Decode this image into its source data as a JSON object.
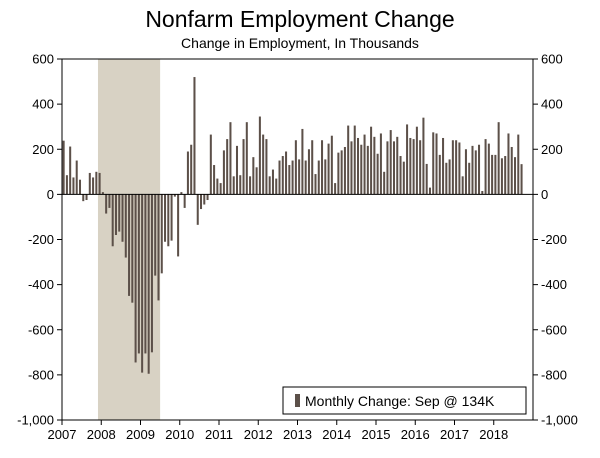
{
  "chart_data": {
    "type": "bar",
    "title": "Nonfarm Employment Change",
    "subtitle": "Change in Employment, In Thousands",
    "xlabel": "",
    "ylabel": "",
    "ylim": [
      -1000,
      600
    ],
    "yticks": [
      600,
      400,
      200,
      0,
      -200,
      -400,
      -600,
      -800,
      -1000
    ],
    "ytick_labels": [
      "600",
      "400",
      "200",
      "0",
      "-200",
      "-400",
      "-600",
      "-800",
      "-1,000"
    ],
    "xticks": [
      "2007",
      "2008",
      "2009",
      "2010",
      "2011",
      "2012",
      "2013",
      "2014",
      "2015",
      "2016",
      "2017",
      "2018"
    ],
    "start": "2007-01",
    "recession": {
      "start": "2007-12",
      "end": "2009-06"
    },
    "series": [
      {
        "name": "Monthly Change: Sep @ 134K",
        "color": "#5c5049",
        "values": [
          238,
          85,
          212,
          75,
          150,
          65,
          -30,
          -25,
          95,
          75,
          100,
          95,
          10,
          -85,
          -60,
          -230,
          -180,
          -165,
          -210,
          -280,
          -450,
          -480,
          -745,
          -705,
          -790,
          -705,
          -795,
          -700,
          -360,
          -470,
          -350,
          -210,
          -230,
          -205,
          -10,
          -275,
          10,
          -60,
          190,
          220,
          520,
          -135,
          -65,
          -45,
          -25,
          265,
          130,
          70,
          50,
          195,
          245,
          320,
          80,
          215,
          85,
          245,
          320,
          80,
          165,
          120,
          345,
          265,
          245,
          80,
          110,
          70,
          150,
          170,
          190,
          130,
          150,
          240,
          155,
          290,
          150,
          200,
          240,
          90,
          150,
          240,
          155,
          225,
          260,
          50,
          185,
          195,
          210,
          305,
          235,
          305,
          250,
          220,
          265,
          215,
          300,
          255,
          180,
          270,
          100,
          235,
          285,
          235,
          255,
          170,
          145,
          310,
          250,
          245,
          300,
          240,
          340,
          135,
          30,
          275,
          270,
          175,
          250,
          140,
          155,
          240,
          240,
          230,
          80,
          200,
          140,
          215,
          195,
          220,
          15,
          245,
          225,
          175,
          175,
          320,
          160,
          170,
          270,
          210,
          165,
          265,
          134
        ]
      }
    ],
    "legend": {
      "label": "Monthly Change: Sep @ 134K",
      "position": "bottom-right"
    }
  }
}
